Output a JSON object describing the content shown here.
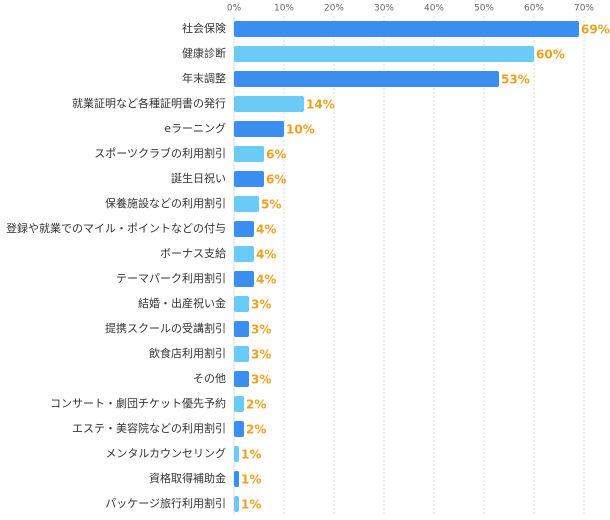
{
  "chart_data": {
    "type": "bar",
    "orientation": "horizontal",
    "categories": [
      "社会保険",
      "健康診断",
      "年末調整",
      "就業証明など各種証明書の発行",
      "eラーニング",
      "スポーツクラブの利用割引",
      "誕生日祝い",
      "保養施設などの利用割引",
      "登録や就業でのマイル・ポイントなどの付与",
      "ボーナス支給",
      "テーマパーク利用割引",
      "結婚・出産祝い金",
      "提携スクールの受講割引",
      "飲食店利用割引",
      "その他",
      "コンサート・劇団チケット優先予約",
      "エステ・美容院などの利用割引",
      "メンタルカウンセリング",
      "資格取得補助金",
      "パッケージ旅行利用割引"
    ],
    "values": [
      69,
      60,
      53,
      14,
      10,
      6,
      6,
      5,
      4,
      4,
      4,
      3,
      3,
      3,
      3,
      2,
      2,
      1,
      1,
      1
    ],
    "value_labels": [
      "69%",
      "60%",
      "53%",
      "14%",
      "10%",
      "6%",
      "6%",
      "5%",
      "4%",
      "4%",
      "4%",
      "3%",
      "3%",
      "3%",
      "3%",
      "2%",
      "2%",
      "1%",
      "1%",
      "1%"
    ],
    "colors": [
      "#3a8ef0",
      "#6ccaf6",
      "#3a8ef0",
      "#6ccaf6",
      "#3a8ef0",
      "#6ccaf6",
      "#3a8ef0",
      "#6ccaf6",
      "#3a8ef0",
      "#6ccaf6",
      "#3a8ef0",
      "#6ccaf6",
      "#3a8ef0",
      "#6ccaf6",
      "#3a8ef0",
      "#6ccaf6",
      "#3a8ef0",
      "#6ccaf6",
      "#3a8ef0",
      "#6ccaf6"
    ],
    "xlim": [
      0,
      75
    ],
    "xticks": [
      {
        "value": 0,
        "label": "0%"
      },
      {
        "value": 10,
        "label": "10%"
      },
      {
        "value": 20,
        "label": "20%"
      },
      {
        "value": 30,
        "label": "30%"
      },
      {
        "value": 40,
        "label": "40%"
      },
      {
        "value": 50,
        "label": "50%"
      },
      {
        "value": 60,
        "label": "60%"
      },
      {
        "value": 70,
        "label": "70%"
      }
    ],
    "grid": true
  }
}
